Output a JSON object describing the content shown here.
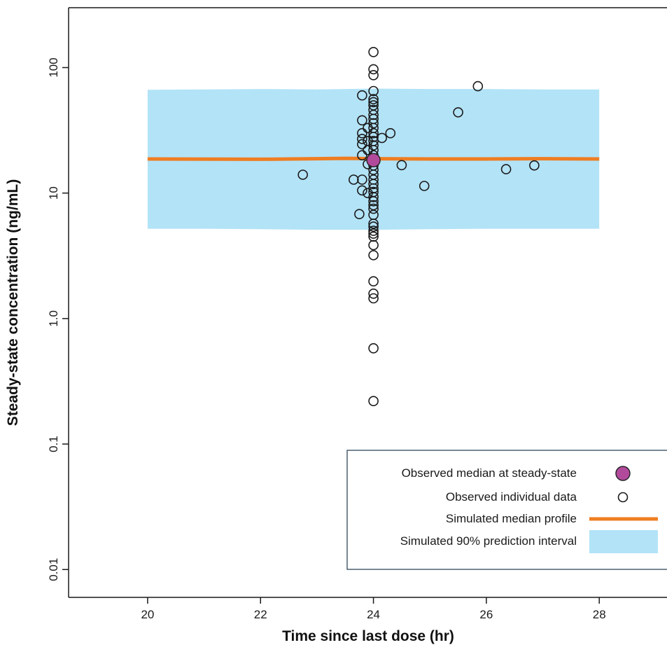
{
  "chart_data": {
    "type": "scatter",
    "xlabel": "Time since last dose (hr)",
    "ylabel": "Steady-state concentration (ng/mL)",
    "x_ticks": [
      20,
      22,
      24,
      26,
      28
    ],
    "x_tick_labels": [
      "20",
      "22",
      "24",
      "26",
      "28"
    ],
    "y_scale": "log",
    "y_ticks": [
      0.01,
      0.1,
      1,
      10,
      100
    ],
    "y_tick_labels": [
      "0.01",
      "0.1",
      "1.0",
      "10",
      "100"
    ],
    "xlim": [
      18.6,
      29.2
    ],
    "ylim": [
      0.006,
      300
    ],
    "grid": false,
    "legend_position": "bottom-right",
    "prediction_interval": {
      "label": "Simulated 90% prediction interval",
      "color": "#b3e3f7",
      "x": [
        20,
        21,
        22,
        23,
        24,
        25,
        26,
        27,
        28
      ],
      "upper": [
        66.5,
        67,
        67.5,
        67,
        68,
        67.5,
        67.5,
        67,
        67
      ],
      "lower": [
        5.2,
        5.2,
        5.15,
        5.1,
        5.1,
        5.15,
        5.2,
        5.2,
        5.2
      ]
    },
    "median_profile": {
      "label": "Simulated median profile",
      "color": "#ef7d22",
      "x": [
        20,
        22,
        23,
        23.5,
        24,
        25,
        26,
        27,
        28
      ],
      "y": [
        18.7,
        18.6,
        18.8,
        18.9,
        18.8,
        18.7,
        18.7,
        18.8,
        18.7
      ]
    },
    "observed_median": {
      "label": "Observed median at steady-state",
      "color": "#b24a9c",
      "x": 24.0,
      "y": 18.3
    },
    "observed_individual": {
      "label": "Observed individual data",
      "points": [
        [
          22.75,
          14.0
        ],
        [
          23.65,
          12.8
        ],
        [
          23.75,
          6.8
        ],
        [
          23.8,
          10.5
        ],
        [
          23.8,
          12.8
        ],
        [
          23.8,
          20.0
        ],
        [
          23.8,
          24.5
        ],
        [
          23.8,
          27.0
        ],
        [
          23.8,
          30.0
        ],
        [
          23.8,
          38.0
        ],
        [
          23.8,
          60.0
        ],
        [
          23.9,
          10.0
        ],
        [
          23.9,
          17.0
        ],
        [
          23.9,
          22.0
        ],
        [
          23.9,
          26.0
        ],
        [
          23.9,
          33.0
        ],
        [
          24.0,
          0.22
        ],
        [
          24.0,
          0.58
        ],
        [
          24.0,
          1.45
        ],
        [
          24.0,
          1.58
        ],
        [
          24.0,
          1.98
        ],
        [
          24.0,
          3.2
        ],
        [
          24.0,
          3.85
        ],
        [
          24.0,
          4.5
        ],
        [
          24.0,
          4.75
        ],
        [
          24.0,
          5.0
        ],
        [
          24.0,
          5.4
        ],
        [
          24.0,
          5.7
        ],
        [
          24.0,
          6.7
        ],
        [
          24.0,
          7.5
        ],
        [
          24.0,
          8.0
        ],
        [
          24.0,
          8.6
        ],
        [
          24.0,
          9.3
        ],
        [
          24.0,
          10.2
        ],
        [
          24.0,
          10.9
        ],
        [
          24.0,
          11.8
        ],
        [
          24.0,
          12.8
        ],
        [
          24.0,
          14.0
        ],
        [
          24.0,
          15.3
        ],
        [
          24.0,
          16.6
        ],
        [
          24.0,
          20.0
        ],
        [
          24.0,
          22.0
        ],
        [
          24.0,
          24.0
        ],
        [
          24.0,
          26.0
        ],
        [
          24.0,
          28.0
        ],
        [
          24.0,
          30.0
        ],
        [
          24.0,
          33.0
        ],
        [
          24.0,
          36.0
        ],
        [
          24.0,
          39.0
        ],
        [
          24.0,
          42.0
        ],
        [
          24.0,
          46.0
        ],
        [
          24.0,
          50.0
        ],
        [
          24.0,
          53.0
        ],
        [
          24.0,
          56.0
        ],
        [
          24.0,
          65.0
        ],
        [
          24.0,
          87.0
        ],
        [
          24.0,
          97.0
        ],
        [
          24.0,
          133.0
        ],
        [
          24.15,
          27.5
        ],
        [
          24.3,
          30.0
        ],
        [
          24.5,
          16.7
        ],
        [
          24.9,
          11.4
        ],
        [
          25.5,
          44.0
        ],
        [
          25.85,
          71.0
        ],
        [
          26.35,
          15.5
        ],
        [
          26.85,
          16.6
        ]
      ]
    }
  }
}
